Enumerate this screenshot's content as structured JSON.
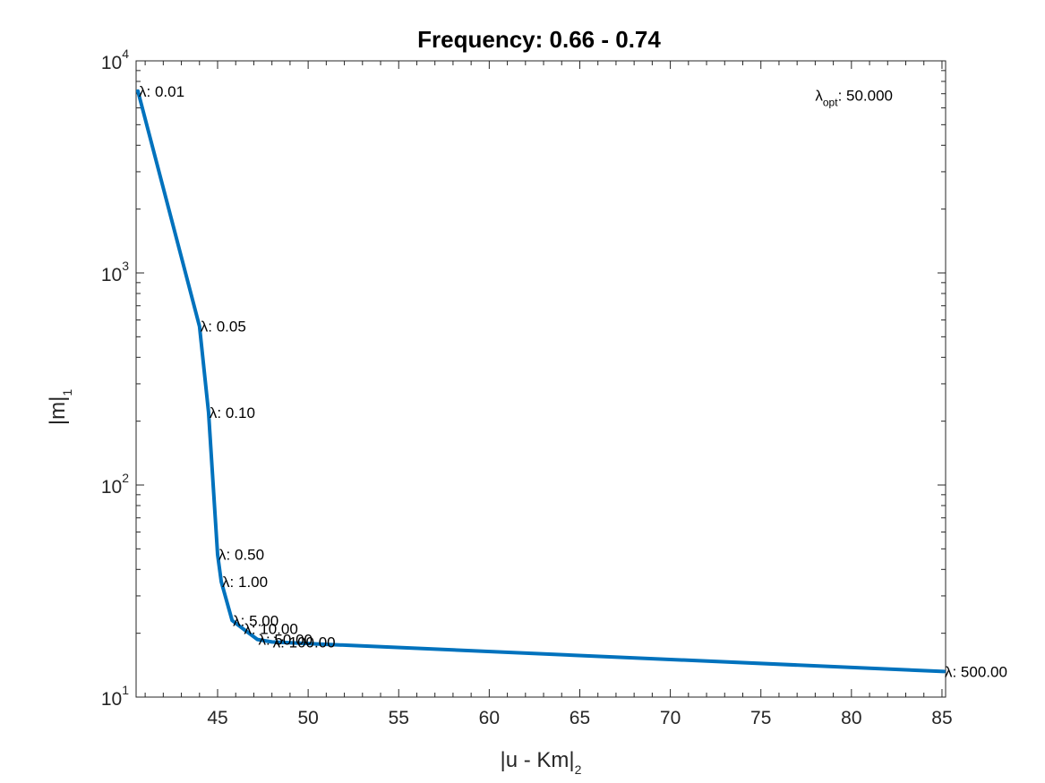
{
  "chart_data": {
    "type": "line",
    "title": "Frequency: 0.66 - 0.74",
    "xlabel": {
      "main": "|u - Km|",
      "sub": "2"
    },
    "ylabel": {
      "main": "|m|",
      "sub": "1"
    },
    "xlim": [
      40.5,
      85.2
    ],
    "ylim": [
      10,
      10000
    ],
    "yscale": "log",
    "x_ticks": [
      45,
      50,
      55,
      60,
      65,
      70,
      75,
      80,
      85
    ],
    "x_tick_labels": [
      "45",
      "50",
      "55",
      "60",
      "65",
      "70",
      "75",
      "80",
      "85"
    ],
    "y_ticks": [
      10,
      100,
      1000,
      10000
    ],
    "y_tick_labels": [
      {
        "base": "10",
        "exp": "1"
      },
      {
        "base": "10",
        "exp": "2"
      },
      {
        "base": "10",
        "exp": "3"
      },
      {
        "base": "10",
        "exp": "4"
      }
    ],
    "grid": false,
    "series": [
      {
        "color": "#0072bd",
        "x": [
          40.6,
          44.0,
          44.5,
          45.0,
          45.2,
          45.8,
          46.4,
          47.2,
          48.0,
          85.1
        ],
        "y": [
          7200,
          560,
          220,
          47,
          35,
          23,
          21,
          18.7,
          18.2,
          13.2
        ]
      }
    ],
    "point_labels": [
      {
        "x": 40.6,
        "y": 7200,
        "text": "λ: 0.01"
      },
      {
        "x": 44.0,
        "y": 560,
        "text": "λ: 0.05"
      },
      {
        "x": 44.5,
        "y": 220,
        "text": "λ: 0.10"
      },
      {
        "x": 45.0,
        "y": 47,
        "text": "λ: 0.50"
      },
      {
        "x": 45.2,
        "y": 35,
        "text": "λ: 1.00"
      },
      {
        "x": 45.8,
        "y": 23,
        "text": "λ: 5.00"
      },
      {
        "x": 46.4,
        "y": 21,
        "text": "λ: 10.00"
      },
      {
        "x": 47.2,
        "y": 18.7,
        "text": "λ: 50.00"
      },
      {
        "x": 48.0,
        "y": 18.2,
        "text": "λ: 100.00"
      },
      {
        "x": 85.1,
        "y": 13.2,
        "text": "λ: 500.00"
      }
    ],
    "annotation": {
      "symbol": "λ",
      "sub": "opt",
      "text": ": 50.000",
      "x": 78.0,
      "y": 6500
    }
  }
}
